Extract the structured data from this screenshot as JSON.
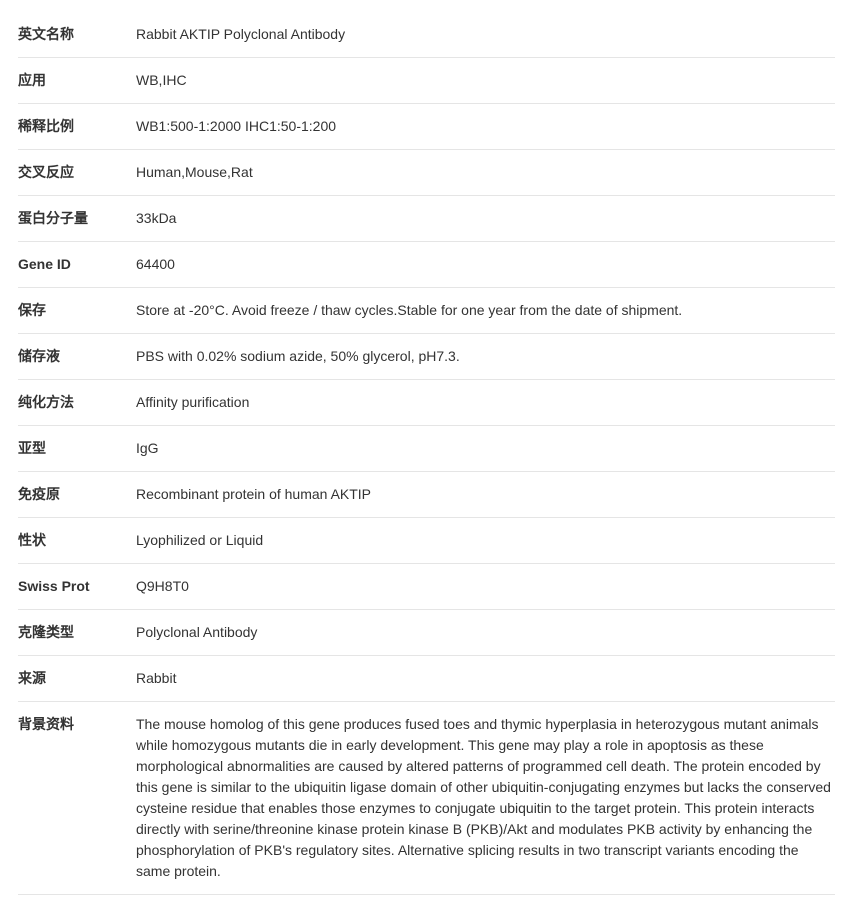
{
  "table": {
    "label_color": "#333333",
    "value_color": "#333333",
    "border_color": "#e5e5e5",
    "label_fontsize": 14,
    "value_fontsize": 14,
    "label_fontweight": 700,
    "rows": [
      {
        "label": "英文名称",
        "value": "Rabbit AKTIP Polyclonal Antibody"
      },
      {
        "label": "应用",
        "value": "WB,IHC"
      },
      {
        "label": "稀释比例",
        "value": "WB1:500-1:2000 IHC1:50-1:200"
      },
      {
        "label": "交叉反应",
        "value": "Human,Mouse,Rat"
      },
      {
        "label": "蛋白分子量",
        "value": "33kDa"
      },
      {
        "label": "Gene ID",
        "value": "64400"
      },
      {
        "label": "保存",
        "value": "Store at -20°C. Avoid freeze / thaw cycles.Stable for one year from the date of shipment."
      },
      {
        "label": "储存液",
        "value": "PBS with 0.02% sodium azide, 50% glycerol, pH7.3."
      },
      {
        "label": "纯化方法",
        "value": "Affinity purification"
      },
      {
        "label": "亚型",
        "value": "IgG"
      },
      {
        "label": "免疫原",
        "value": "Recombinant protein of human AKTIP"
      },
      {
        "label": "性状",
        "value": "Lyophilized or Liquid"
      },
      {
        "label": "Swiss Prot",
        "value": "Q9H8T0"
      },
      {
        "label": "克隆类型",
        "value": "Polyclonal Antibody"
      },
      {
        "label": "来源",
        "value": "Rabbit"
      },
      {
        "label": "背景资料",
        "value": "The mouse homolog of this gene produces fused toes and thymic hyperplasia in heterozygous mutant animals while homozygous mutants die in early development. This gene may play a role in apoptosis as these morphological abnormalities are caused by altered patterns of programmed cell death. The protein encoded by this gene is similar to the ubiquitin ligase domain of other ubiquitin-conjugating enzymes but lacks the conserved cysteine residue that enables those enzymes to conjugate ubiquitin to the target protein. This protein interacts directly with serine/threonine kinase protein kinase B (PKB)/Akt and modulates PKB activity by enhancing the phosphorylation of PKB's regulatory sites. Alternative splicing results in two transcript variants encoding the same protein."
      }
    ]
  }
}
